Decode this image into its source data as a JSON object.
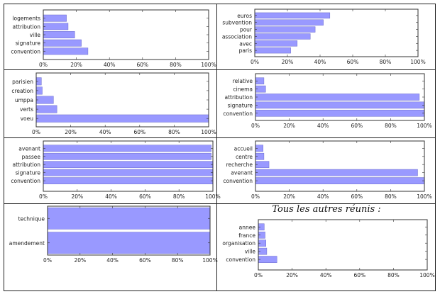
{
  "chart_data": [
    {
      "type": "bar",
      "orientation": "horizontal",
      "title": "",
      "categories": [
        "logements",
        "attribution",
        "ville",
        "signature",
        "convention"
      ],
      "values": [
        14,
        15,
        19,
        23,
        27
      ],
      "xlim": [
        0,
        100
      ],
      "xticks": [
        "0%",
        "20%",
        "40%",
        "60%",
        "80%",
        "100%"
      ],
      "color": "#9999ff"
    },
    {
      "type": "bar",
      "orientation": "horizontal",
      "title": "",
      "categories": [
        "euros",
        "subvention",
        "pour",
        "association",
        "avec",
        "paris"
      ],
      "values": [
        46,
        42,
        37,
        34,
        26,
        22
      ],
      "xlim": [
        0,
        100
      ],
      "xticks": [
        "0%",
        "20%",
        "40%",
        "60%",
        "80%",
        "100%"
      ],
      "color": "#9999ff"
    },
    {
      "type": "bar",
      "orientation": "horizontal",
      "title": "",
      "categories": [
        "parisien",
        "creation",
        "umppa",
        "verts",
        "voeu"
      ],
      "values": [
        3,
        3.5,
        10,
        12,
        100
      ],
      "xlim": [
        0,
        100
      ],
      "xticks": [
        "0%",
        "20%",
        "40%",
        "60%",
        "80%",
        "100%"
      ],
      "color": "#9999ff"
    },
    {
      "type": "bar",
      "orientation": "horizontal",
      "title": "",
      "categories": [
        "relative",
        "cinema",
        "attribution",
        "signature",
        "convention"
      ],
      "values": [
        5,
        6,
        97,
        100,
        100
      ],
      "xlim": [
        0,
        100
      ],
      "xticks": [
        "0%",
        "20%",
        "40%",
        "60%",
        "80%",
        "100%"
      ],
      "color": "#9999ff"
    },
    {
      "type": "bar",
      "orientation": "horizontal",
      "title": "",
      "categories": [
        "avenant",
        "passee",
        "attribution",
        "signature",
        "convention"
      ],
      "values": [
        99,
        99,
        100,
        100,
        100
      ],
      "xlim": [
        0,
        100
      ],
      "xticks": [
        "0%",
        "20%",
        "40%",
        "60%",
        "80%",
        "100%"
      ],
      "color": "#9999ff"
    },
    {
      "type": "bar",
      "orientation": "horizontal",
      "title": "",
      "categories": [
        "accueil",
        "centre",
        "recherche",
        "avenant",
        "convention"
      ],
      "values": [
        4.5,
        5,
        8,
        96,
        100
      ],
      "xlim": [
        0,
        100
      ],
      "xticks": [
        "0%",
        "20%",
        "40%",
        "60%",
        "80%",
        "100%"
      ],
      "color": "#9999ff"
    },
    {
      "type": "bar",
      "orientation": "horizontal",
      "title": "",
      "categories": [
        "technique",
        "amendement"
      ],
      "values": [
        100,
        100
      ],
      "xlim": [
        0,
        100
      ],
      "xticks": [
        "0%",
        "20%",
        "40%",
        "60%",
        "80%",
        "100%"
      ],
      "color": "#9999ff"
    },
    {
      "type": "bar",
      "orientation": "horizontal",
      "title": "Tous les autres réunis :",
      "categories": [
        "annee",
        "france",
        "organisation",
        "ville",
        "convention"
      ],
      "values": [
        3.5,
        4,
        4.5,
        5,
        11
      ],
      "xlim": [
        0,
        100
      ],
      "xticks": [
        "0%",
        "20%",
        "40%",
        "60%",
        "80%",
        "100%"
      ],
      "color": "#9999ff"
    }
  ]
}
